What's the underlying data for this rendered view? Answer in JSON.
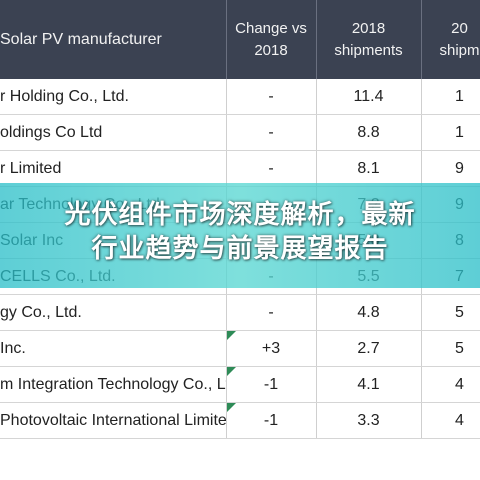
{
  "table": {
    "headers": {
      "name": "Solar PV manufacturer",
      "change": [
        "Change vs",
        "2018"
      ],
      "shipments2018": [
        "2018",
        "shipments"
      ],
      "partial": [
        "20",
        "shipm"
      ]
    },
    "rows": [
      {
        "name": "r Holding Co., Ltd.",
        "change": "-",
        "s2018": "11.4",
        "partial": "1",
        "flag": false
      },
      {
        "name": "oldings Co Ltd",
        "change": "-",
        "s2018": "8.8",
        "partial": "1",
        "flag": false
      },
      {
        "name": "r Limited",
        "change": "-",
        "s2018": "8.1",
        "partial": "9",
        "flag": false
      },
      {
        "name": "ar Technology Co., Ltd.",
        "change": "-",
        "s2018": "7.2",
        "partial": "9",
        "flag": false
      },
      {
        "name": "Solar Inc",
        "change": "-",
        "s2018": "5.8",
        "partial": "8",
        "flag": false
      },
      {
        "name": "CELLS Co., Ltd.",
        "change": "-",
        "s2018": "5.5",
        "partial": "7",
        "flag": false
      },
      {
        "name": "gy Co., Ltd.",
        "change": "-",
        "s2018": "4.8",
        "partial": "5",
        "flag": false
      },
      {
        "name": "Inc.",
        "change": "+3",
        "s2018": "2.7",
        "partial": "5",
        "flag": true
      },
      {
        "name": "m Integration Technology Co., Ltd.",
        "change": "-1",
        "s2018": "4.1",
        "partial": "4",
        "flag": true
      },
      {
        "name": "Photovoltaic International Limited",
        "change": "-1",
        "s2018": "3.3",
        "partial": "4",
        "flag": true
      }
    ]
  },
  "overlay": {
    "line1": "光伏组件市场深度解析，最新",
    "line2": "行业趋势与前景展望报告"
  },
  "colors": {
    "header_bg": "#3b4252",
    "band": "#3cc8c8",
    "flag": "#2e8b57"
  }
}
